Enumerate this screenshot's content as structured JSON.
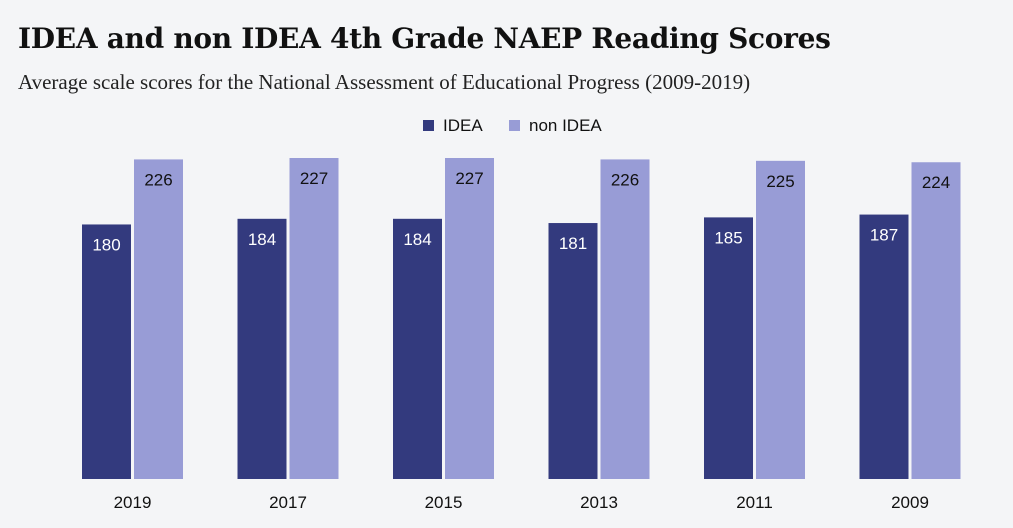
{
  "title": "IDEA and non IDEA 4th Grade NAEP Reading Scores",
  "subtitle": "Average scale scores for the National Assessment of Educational Progress (2009-2019)",
  "colors": {
    "idea": "#333a7e",
    "non_idea": "#989cd6"
  },
  "chart_data": {
    "type": "bar",
    "categories": [
      "2019",
      "2017",
      "2015",
      "2013",
      "2011",
      "2009"
    ],
    "series": [
      {
        "name": "IDEA",
        "values": [
          180,
          184,
          184,
          181,
          185,
          187
        ]
      },
      {
        "name": "non IDEA",
        "values": [
          226,
          227,
          227,
          226,
          225,
          224
        ]
      }
    ],
    "ylim": [
      0,
      227
    ],
    "legend": "top-center",
    "grid": false,
    "data_labels": true
  }
}
